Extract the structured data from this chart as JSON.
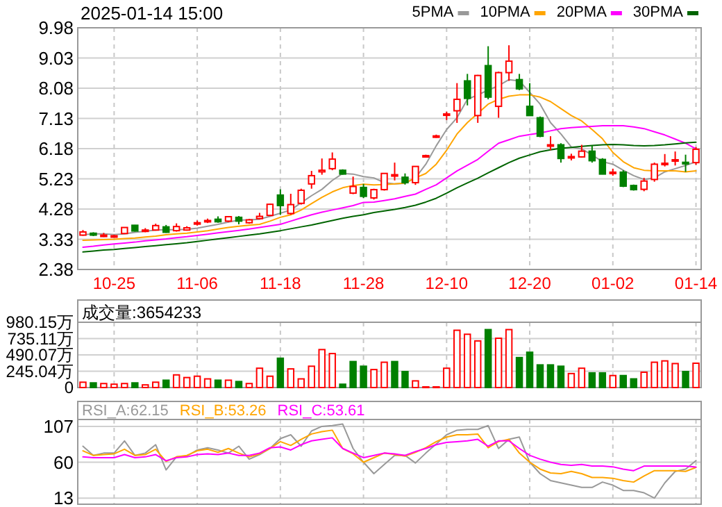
{
  "chart_data": [
    {
      "type": "candlestick",
      "title": "2025-01-14 15:00",
      "categories": [
        null,
        null,
        null,
        "10-25",
        null,
        null,
        null,
        null,
        null,
        null,
        null,
        "11-06",
        null,
        null,
        null,
        null,
        null,
        null,
        null,
        "11-18",
        null,
        null,
        null,
        null,
        null,
        null,
        null,
        "11-28",
        null,
        null,
        null,
        null,
        null,
        null,
        null,
        "12-10",
        null,
        null,
        null,
        null,
        null,
        null,
        null,
        "12-20",
        null,
        null,
        null,
        null,
        null,
        null,
        null,
        "01-02",
        null,
        null,
        null,
        null,
        null,
        null,
        null,
        "01-14"
      ],
      "ohlc": [
        [
          3.46,
          3.62,
          3.44,
          3.56
        ],
        [
          3.52,
          3.55,
          3.43,
          3.46
        ],
        [
          3.44,
          3.53,
          3.4,
          3.46
        ],
        [
          3.43,
          3.47,
          3.4,
          3.44
        ],
        [
          3.51,
          3.71,
          3.5,
          3.7
        ],
        [
          3.77,
          3.78,
          3.57,
          3.59
        ],
        [
          3.58,
          3.68,
          3.55,
          3.62
        ],
        [
          3.62,
          3.82,
          3.6,
          3.76
        ],
        [
          3.72,
          3.78,
          3.53,
          3.55
        ],
        [
          3.6,
          3.83,
          3.57,
          3.73
        ],
        [
          3.62,
          3.74,
          3.6,
          3.69
        ],
        [
          3.82,
          3.92,
          3.76,
          3.85
        ],
        [
          3.88,
          3.98,
          3.84,
          3.92
        ],
        [
          3.96,
          4.05,
          3.85,
          3.88
        ],
        [
          3.9,
          4.06,
          3.87,
          4.04
        ],
        [
          4.02,
          4.06,
          3.8,
          3.9
        ],
        [
          3.85,
          3.97,
          3.82,
          3.94
        ],
        [
          3.98,
          4.16,
          3.96,
          4.05
        ],
        [
          4.08,
          4.45,
          4.06,
          4.43
        ],
        [
          4.72,
          4.9,
          4.1,
          4.39
        ],
        [
          4.14,
          4.76,
          4.1,
          4.42
        ],
        [
          4.46,
          4.92,
          4.42,
          4.87
        ],
        [
          5.07,
          5.48,
          4.92,
          5.33
        ],
        [
          5.45,
          5.87,
          5.36,
          5.5
        ],
        [
          5.55,
          6.06,
          5.5,
          5.85
        ],
        [
          5.5,
          5.53,
          5.36,
          5.38
        ],
        [
          4.78,
          5.3,
          4.75,
          4.99
        ],
        [
          4.96,
          5.07,
          4.63,
          4.68
        ],
        [
          4.63,
          4.92,
          4.58,
          4.89
        ],
        [
          4.89,
          5.4,
          4.86,
          5.4
        ],
        [
          5.32,
          5.74,
          5.18,
          5.36
        ],
        [
          5.28,
          5.4,
          5.05,
          5.11
        ],
        [
          5.11,
          5.62,
          5.04,
          5.62
        ],
        [
          5.94,
          5.99,
          5.92,
          5.96
        ],
        [
          6.55,
          6.62,
          6.52,
          6.58
        ],
        [
          7.24,
          7.34,
          7.08,
          7.27
        ],
        [
          7.37,
          8.24,
          6.99,
          7.73
        ],
        [
          8.31,
          8.53,
          7.54,
          7.76
        ],
        [
          7.22,
          8.5,
          6.99,
          8.48
        ],
        [
          8.79,
          9.4,
          7.73,
          7.8
        ],
        [
          7.51,
          8.6,
          7.15,
          8.57
        ],
        [
          8.57,
          9.43,
          8.31,
          8.93
        ],
        [
          8.35,
          8.53,
          8.02,
          8.06
        ],
        [
          7.51,
          8.24,
          7.22,
          7.22
        ],
        [
          7.15,
          7.19,
          6.54,
          6.57
        ],
        [
          6.28,
          6.57,
          6.13,
          6.3
        ],
        [
          6.3,
          6.35,
          5.74,
          5.87
        ],
        [
          5.9,
          6.02,
          5.81,
          5.93
        ],
        [
          5.92,
          6.3,
          5.9,
          6.1
        ],
        [
          6.1,
          6.28,
          5.74,
          5.8
        ],
        [
          5.84,
          5.88,
          5.37,
          5.38
        ],
        [
          5.41,
          5.55,
          5.33,
          5.44
        ],
        [
          5.44,
          5.5,
          4.97,
          5.0
        ],
        [
          5.02,
          5.05,
          4.86,
          4.89
        ],
        [
          4.9,
          5.26,
          4.84,
          5.16
        ],
        [
          5.21,
          5.74,
          5.14,
          5.69
        ],
        [
          5.69,
          6.01,
          5.62,
          5.72
        ],
        [
          5.79,
          6.09,
          5.65,
          5.83
        ],
        [
          5.75,
          5.99,
          5.45,
          5.7
        ],
        [
          5.74,
          6.23,
          5.67,
          6.16
        ]
      ],
      "colors": [
        "#ff0000",
        "#008000",
        "#ff0000",
        "#ff0000",
        "#ff0000",
        "#008000",
        "#ff0000",
        "#ff0000",
        "#008000",
        "#ff0000",
        "#ff0000",
        "#ff0000",
        "#ff0000",
        "#008000",
        "#ff0000",
        "#008000",
        "#ff0000",
        "#ff0000",
        "#ff0000",
        "#008000",
        "#ff0000",
        "#ff0000",
        "#ff0000",
        "#ff0000",
        "#ff0000",
        "#008000",
        "#ff0000",
        "#008000",
        "#ff0000",
        "#ff0000",
        "#ff0000",
        "#008000",
        "#ff0000",
        "#ff0000",
        "#ff0000",
        "#ff0000",
        "#ff0000",
        "#008000",
        "#ff0000",
        "#008000",
        "#ff0000",
        "#ff0000",
        "#008000",
        "#008000",
        "#008000",
        "#ff0000",
        "#008000",
        "#ff0000",
        "#ff0000",
        "#008000",
        "#008000",
        "#ff0000",
        "#008000",
        "#008000",
        "#ff0000",
        "#ff0000",
        "#ff0000",
        "#ff0000",
        "#008000",
        "#ff0000"
      ],
      "series": [
        {
          "name": "5PMA",
          "type": "line",
          "color": "#999999",
          "values": [
            3.47,
            3.5,
            3.5,
            3.48,
            3.5,
            3.55,
            3.58,
            3.62,
            3.63,
            3.63,
            3.64,
            3.68,
            3.74,
            3.8,
            3.87,
            3.93,
            3.94,
            3.96,
            4.05,
            4.15,
            4.25,
            4.48,
            4.7,
            4.9,
            5.18,
            5.4,
            5.38,
            5.3,
            5.26,
            5.11,
            5.07,
            5.09,
            5.26,
            5.69,
            6.27,
            6.78,
            7.15,
            7.73,
            7.87,
            8.02,
            8.16,
            8.35,
            8.31,
            7.95,
            7.58,
            7.0,
            6.64,
            6.23,
            6.17,
            5.98,
            5.77,
            5.69,
            5.5,
            5.33,
            5.21,
            5.26,
            5.45,
            5.55,
            5.65,
            5.77
          ]
        },
        {
          "name": "10PMA",
          "type": "line",
          "color": "#ffa500",
          "values": [
            3.3,
            3.31,
            3.32,
            3.33,
            3.35,
            3.37,
            3.4,
            3.43,
            3.47,
            3.5,
            3.52,
            3.56,
            3.6,
            3.65,
            3.7,
            3.74,
            3.77,
            3.8,
            3.9,
            4.02,
            4.1,
            4.25,
            4.45,
            4.65,
            4.82,
            4.95,
            5.02,
            5.06,
            5.04,
            5.05,
            5.07,
            5.1,
            5.26,
            5.4,
            5.69,
            6.13,
            6.64,
            7.0,
            7.29,
            7.58,
            7.73,
            7.83,
            7.87,
            7.87,
            7.8,
            7.66,
            7.44,
            7.22,
            7.05,
            6.78,
            6.49,
            6.06,
            5.77,
            5.58,
            5.5,
            5.48,
            5.48,
            5.48,
            5.45,
            5.48
          ]
        },
        {
          "name": "20PMA",
          "type": "line",
          "color": "#ff00ff",
          "values": [
            3.08,
            3.11,
            3.15,
            3.18,
            3.21,
            3.24,
            3.28,
            3.31,
            3.34,
            3.38,
            3.41,
            3.45,
            3.49,
            3.53,
            3.57,
            3.61,
            3.65,
            3.7,
            3.75,
            3.8,
            3.9,
            4.0,
            4.1,
            4.18,
            4.25,
            4.32,
            4.39,
            4.49,
            4.5,
            4.55,
            4.6,
            4.68,
            4.75,
            4.9,
            5.04,
            5.26,
            5.48,
            5.66,
            5.84,
            6.1,
            6.35,
            6.46,
            6.57,
            6.62,
            6.67,
            6.74,
            6.81,
            6.84,
            6.86,
            6.88,
            6.9,
            6.9,
            6.9,
            6.86,
            6.81,
            6.71,
            6.61,
            6.48,
            6.35,
            6.17
          ]
        },
        {
          "name": "30PMA",
          "type": "line",
          "color": "#006400",
          "values": [
            2.93,
            2.96,
            2.99,
            3.01,
            3.04,
            3.07,
            3.1,
            3.13,
            3.16,
            3.19,
            3.22,
            3.26,
            3.3,
            3.34,
            3.38,
            3.42,
            3.46,
            3.5,
            3.55,
            3.6,
            3.66,
            3.72,
            3.78,
            3.85,
            3.92,
            3.99,
            4.05,
            4.1,
            4.17,
            4.22,
            4.27,
            4.33,
            4.4,
            4.5,
            4.62,
            4.78,
            4.95,
            5.1,
            5.25,
            5.42,
            5.58,
            5.74,
            5.88,
            5.98,
            6.08,
            6.14,
            6.19,
            6.22,
            6.25,
            6.28,
            6.3,
            6.31,
            6.3,
            6.28,
            6.27,
            6.28,
            6.3,
            6.33,
            6.36,
            6.38
          ]
        }
      ],
      "ylim": [
        2.38,
        9.98
      ],
      "yticks": [
        2.38,
        3.33,
        4.28,
        5.23,
        6.18,
        7.13,
        8.08,
        9.03,
        9.98
      ],
      "grid": true,
      "legend": "top right"
    },
    {
      "type": "bar",
      "annotations": [
        "成交量:3654233"
      ],
      "categories": [
        null,
        null,
        null,
        null,
        null,
        null,
        null,
        null,
        null,
        null,
        null,
        null,
        null,
        null,
        null,
        null,
        null,
        null,
        null,
        null,
        null,
        null,
        null,
        null,
        null,
        null,
        null,
        null,
        null,
        null,
        null,
        null,
        null,
        null,
        null,
        null,
        null,
        null,
        null,
        null,
        null,
        null,
        null,
        null,
        null,
        null,
        null,
        null,
        null,
        null,
        null,
        null,
        null,
        null,
        null,
        null,
        null,
        null,
        null,
        null
      ],
      "values": [
        80,
        70,
        60,
        50,
        60,
        70,
        40,
        80,
        110,
        190,
        150,
        170,
        130,
        110,
        110,
        90,
        60,
        290,
        170,
        440,
        280,
        130,
        320,
        570,
        510,
        50,
        390,
        320,
        270,
        380,
        390,
        240,
        100,
        10,
        10,
        290,
        860,
        800,
        700,
        870,
        740,
        870,
        450,
        530,
        340,
        340,
        320,
        210,
        290,
        220,
        220,
        180,
        180,
        130,
        230,
        380,
        400,
        360,
        240,
        365
      ],
      "colors": [
        "#ff0000",
        "#008000",
        "#ff0000",
        "#ff0000",
        "#ff0000",
        "#008000",
        "#ff0000",
        "#ff0000",
        "#008000",
        "#ff0000",
        "#ff0000",
        "#ff0000",
        "#ff0000",
        "#008000",
        "#ff0000",
        "#008000",
        "#ff0000",
        "#ff0000",
        "#ff0000",
        "#008000",
        "#ff0000",
        "#ff0000",
        "#ff0000",
        "#ff0000",
        "#ff0000",
        "#008000",
        "#008000",
        "#008000",
        "#ff0000",
        "#ff0000",
        "#008000",
        "#008000",
        "#ff0000",
        "#ff0000",
        "#ff0000",
        "#ff0000",
        "#ff0000",
        "#ff0000",
        "#ff0000",
        "#008000",
        "#ff0000",
        "#ff0000",
        "#008000",
        "#008000",
        "#008000",
        "#008000",
        "#008000",
        "#ff0000",
        "#ff0000",
        "#008000",
        "#008000",
        "#ff0000",
        "#008000",
        "#008000",
        "#ff0000",
        "#ff0000",
        "#ff0000",
        "#ff0000",
        "#008000",
        "#ff0000"
      ],
      "ylim": [
        0,
        980.15
      ],
      "yticks": [
        0,
        {
          "value": 245.04,
          "label": "245.04万"
        },
        {
          "value": 490.07,
          "label": "490.07万"
        },
        {
          "value": 735.11,
          "label": "735.11万"
        },
        {
          "value": 980.15,
          "label": "980.15万"
        }
      ],
      "grid": true,
      "tick_labels": "y"
    },
    {
      "type": "line",
      "categories": [
        null,
        null,
        null,
        null,
        null,
        null,
        null,
        null,
        null,
        null,
        null,
        null,
        null,
        null,
        null,
        null,
        null,
        null,
        null,
        null,
        null,
        null,
        null,
        null,
        null,
        null,
        null,
        null,
        null,
        null,
        null,
        null,
        null,
        null,
        null,
        null,
        null,
        null,
        null,
        null,
        null,
        null,
        null,
        null,
        null,
        null,
        null,
        null,
        null,
        null,
        null,
        null,
        null,
        null,
        null,
        null,
        null,
        null,
        null,
        null
      ],
      "series": [
        {
          "name": "RSI_A:62.15",
          "color": "#999999",
          "values": [
            81,
            69,
            72,
            72,
            88,
            69,
            72,
            83,
            50,
            67,
            68,
            76,
            79,
            76,
            72,
            81,
            64,
            70,
            78,
            91,
            96,
            81,
            101,
            107,
            108,
            110,
            78,
            60,
            45,
            57,
            69,
            69,
            59,
            72,
            84,
            96,
            102,
            103,
            103,
            108,
            78,
            90,
            93,
            60,
            45,
            36,
            33,
            30,
            27,
            27,
            34,
            30,
            23,
            23,
            20,
            13,
            33,
            48,
            51,
            62.15
          ]
        },
        {
          "name": "RSI_B:53.26",
          "color": "#ffa500",
          "values": [
            75,
            69,
            70,
            71,
            77,
            69,
            70,
            77,
            61,
            67,
            69,
            75,
            77,
            73,
            78,
            72,
            67,
            71,
            78,
            87,
            82,
            90,
            97,
            100,
            102,
            78,
            71,
            60,
            66,
            72,
            70,
            68,
            73,
            79,
            87,
            93,
            96,
            96,
            97,
            79,
            87,
            90,
            72,
            60,
            51,
            46,
            45,
            48,
            45,
            40,
            40,
            39,
            36,
            34,
            42,
            49,
            49,
            49,
            48,
            53.26
          ]
        },
        {
          "name": "RSI_C:53.61",
          "color": "#ff00ff",
          "values": [
            67,
            66,
            66,
            66,
            70,
            66,
            67,
            70,
            62,
            66,
            67,
            70,
            71,
            70,
            72,
            69,
            69,
            72,
            79,
            80,
            76,
            83,
            88,
            90,
            92,
            78,
            72,
            66,
            69,
            72,
            71,
            69,
            74,
            78,
            83,
            86,
            87,
            88,
            90,
            81,
            88,
            88,
            78,
            69,
            64,
            60,
            57,
            56,
            57,
            55,
            55,
            54,
            51,
            49,
            55,
            55,
            55,
            55,
            55,
            53.61
          ]
        }
      ],
      "ylim": [
        5,
        116
      ],
      "yticks": [
        13,
        60,
        107
      ],
      "grid": true,
      "tick_labels": "y",
      "legend": "top left"
    }
  ]
}
